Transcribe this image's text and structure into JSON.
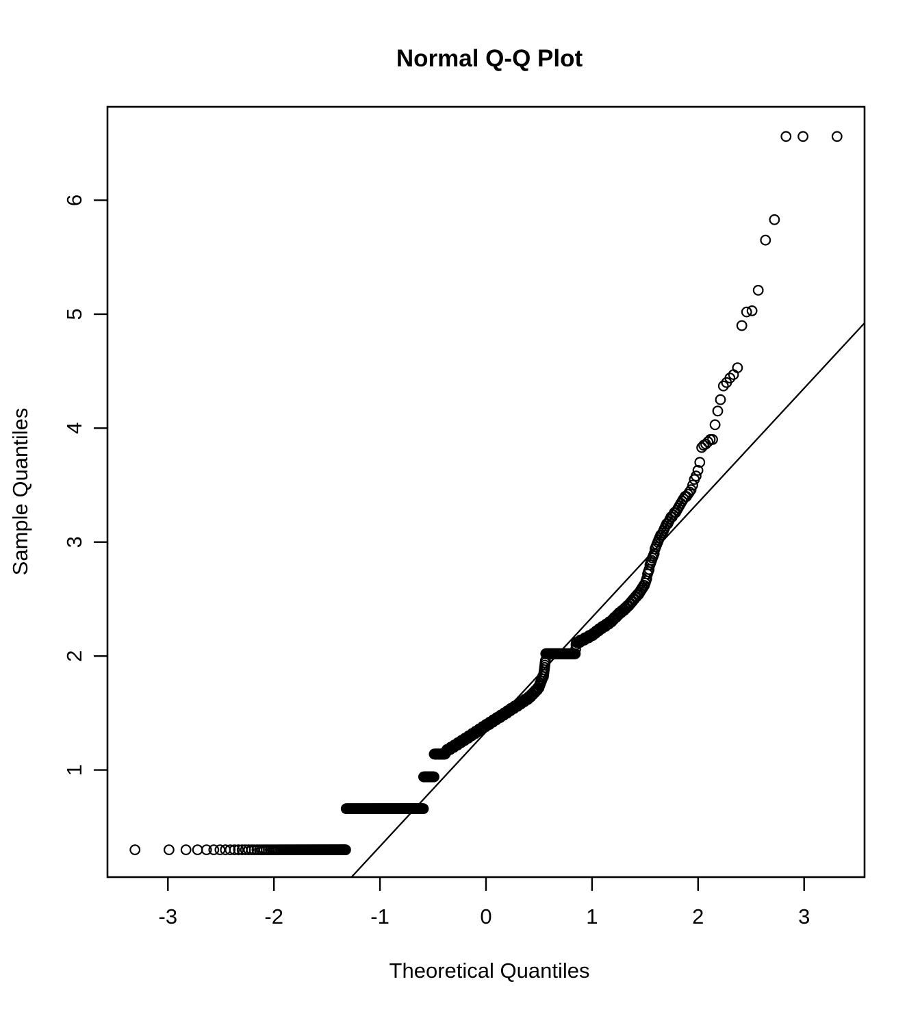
{
  "chart_data": {
    "type": "scatter",
    "subtype": "normal-qq-plot",
    "title": "Normal Q-Q Plot",
    "xlabel": "Theoretical Quantiles",
    "ylabel": "Sample Quantiles",
    "x_ticks": [
      -3,
      -2,
      -1,
      0,
      1,
      2,
      3
    ],
    "y_ticks": [
      1,
      2,
      3,
      4,
      5,
      6
    ],
    "xlim": [
      -3.57,
      3.57
    ],
    "ylim": [
      0.06,
      6.82
    ],
    "n_points": 1073,
    "marker": "open-circle",
    "point_color": "#000000",
    "background": "#ffffff",
    "grid": false,
    "legend": null,
    "reference_line": {
      "slope": 1.005,
      "intercept": 1.335
    },
    "sample_quantile_curve": [
      [
        0.0,
        0.3
      ],
      [
        0.093,
        0.3
      ],
      [
        0.093,
        0.66
      ],
      [
        0.278,
        0.66
      ],
      [
        0.278,
        0.94
      ],
      [
        0.312,
        0.94
      ],
      [
        0.312,
        1.14
      ],
      [
        0.35,
        1.14
      ],
      [
        0.35,
        1.16
      ],
      [
        0.382,
        1.21
      ],
      [
        0.46,
        1.33
      ],
      [
        0.5,
        1.39
      ],
      [
        0.56,
        1.48
      ],
      [
        0.618,
        1.57
      ],
      [
        0.66,
        1.64
      ],
      [
        0.69,
        1.72
      ],
      [
        0.706,
        1.83
      ],
      [
        0.7125,
        1.97
      ],
      [
        0.713,
        2.02
      ],
      [
        0.8,
        2.02
      ],
      [
        0.802,
        2.11
      ],
      [
        0.84,
        2.18
      ],
      [
        0.88,
        2.3
      ],
      [
        0.91,
        2.44
      ],
      [
        0.925,
        2.55
      ],
      [
        0.933,
        2.63
      ],
      [
        0.9365,
        2.72
      ],
      [
        0.94,
        2.82
      ],
      [
        0.9445,
        2.93
      ],
      [
        0.948,
        3.01
      ],
      [
        0.956,
        3.16
      ],
      [
        0.964,
        3.28
      ],
      [
        0.968,
        3.36
      ],
      [
        0.9725,
        3.44
      ]
    ],
    "upper_tail_values": [
      3.44,
      3.46,
      3.5,
      3.55,
      3.58,
      3.63,
      3.7,
      3.83,
      3.85,
      3.86,
      3.88,
      3.9,
      3.9,
      4.03,
      4.15,
      4.25,
      4.37,
      4.4,
      4.44,
      4.47,
      4.53,
      4.9,
      5.02,
      5.03,
      5.21,
      5.65,
      5.83,
      6.56,
      6.56,
      6.56
    ]
  }
}
